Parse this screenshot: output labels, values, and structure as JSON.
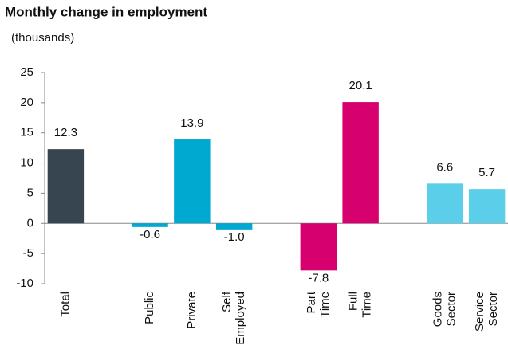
{
  "chart_data": {
    "type": "bar",
    "title": "Monthly change in employment",
    "subtitle": "(thousands)",
    "categories": [
      "Total",
      null,
      "Public",
      "Private",
      "Self Employed",
      null,
      "Part Time",
      "Full Time",
      null,
      "Goods Sector",
      "Service Sector"
    ],
    "values": [
      12.3,
      null,
      -0.6,
      13.9,
      -1.0,
      null,
      -7.8,
      20.1,
      null,
      6.6,
      5.7
    ],
    "value_labels": [
      "12.3",
      null,
      "-0.6",
      "13.9",
      "-1.0",
      null,
      "-7.8",
      "20.1",
      null,
      "6.6",
      "5.7"
    ],
    "colors": [
      "#36454f",
      null,
      "#00a9d0",
      "#00a9d0",
      "#00a9d0",
      null,
      "#d6006f",
      "#d6006f",
      null,
      "#5bcfea",
      "#5bcfea"
    ],
    "ylim": [
      -10,
      25
    ],
    "yticks": [
      -10,
      -5,
      0,
      5,
      10,
      15,
      20,
      25
    ],
    "grid": false
  }
}
